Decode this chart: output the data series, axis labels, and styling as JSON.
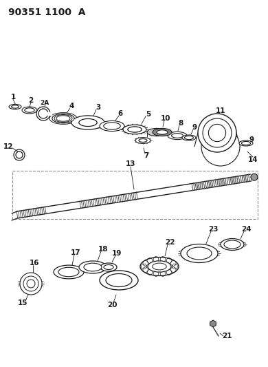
{
  "title": "90351 1100  A",
  "bg_color": "#ffffff",
  "line_color": "#1a1a1a",
  "gray_color": "#555555",
  "light_gray": "#aaaaaa",
  "title_fontsize": 10,
  "label_fontsize": 7.5,
  "fig_width": 3.9,
  "fig_height": 5.33,
  "dpi": 100
}
